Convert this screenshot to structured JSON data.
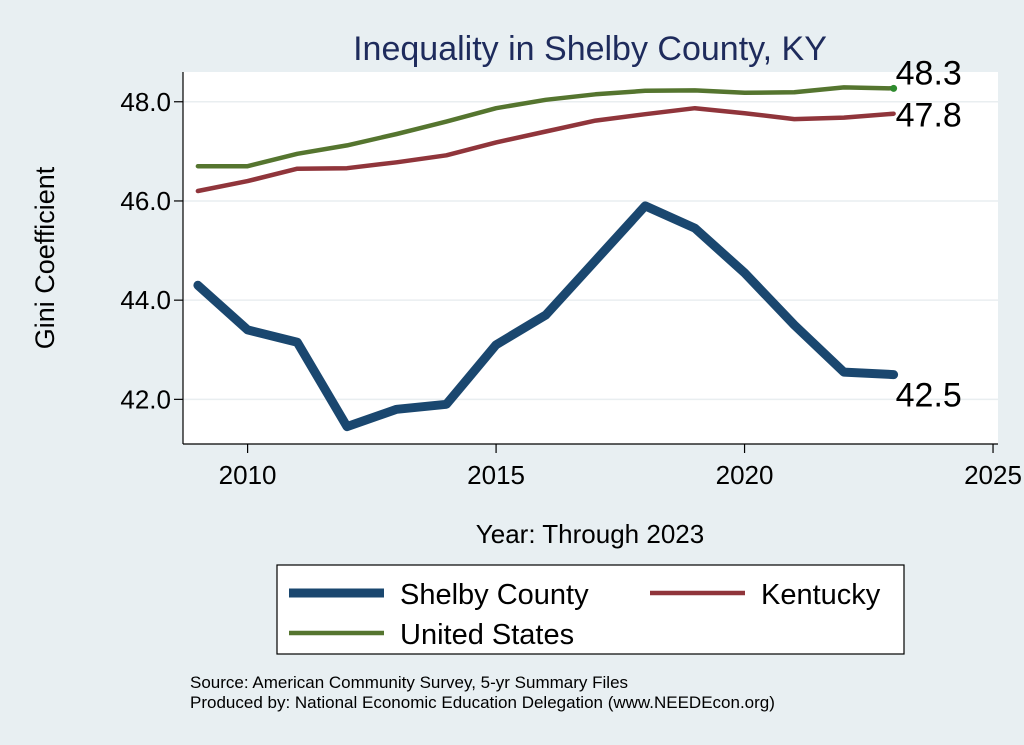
{
  "chart_data": {
    "type": "line",
    "title": "Inequality in Shelby County, KY",
    "xlabel": "Year: Through 2023",
    "ylabel": "Gini Coefficient",
    "xlim": [
      2008.7,
      2025.1
    ],
    "ylim": [
      41.1,
      48.6
    ],
    "x_ticks": [
      2010,
      2015,
      2020,
      2025
    ],
    "x_tick_labels": [
      "2010",
      "2015",
      "2020",
      "2025"
    ],
    "y_ticks": [
      42,
      44,
      46,
      48
    ],
    "y_tick_labels": [
      "42.0",
      "44.0",
      "46.0",
      "48.0"
    ],
    "grid": true,
    "legend_position": "bottom",
    "x": [
      2009,
      2010,
      2011,
      2012,
      2013,
      2014,
      2015,
      2016,
      2017,
      2018,
      2019,
      2020,
      2021,
      2022,
      2023
    ],
    "series": [
      {
        "name": "Shelby County",
        "color": "#1a476f",
        "values": [
          44.3,
          43.4,
          43.15,
          41.45,
          41.8,
          41.9,
          43.1,
          43.7,
          44.8,
          45.9,
          45.45,
          44.55,
          43.5,
          42.55,
          42.5
        ],
        "end_label": "42.5"
      },
      {
        "name": "Kentucky",
        "color": "#90353b",
        "values": [
          46.2,
          46.4,
          46.65,
          46.66,
          46.78,
          46.92,
          47.18,
          47.4,
          47.62,
          47.75,
          47.87,
          47.77,
          47.65,
          47.68,
          47.76
        ],
        "end_label": "47.8"
      },
      {
        "name": "United States",
        "color": "#55752f",
        "values": [
          46.7,
          46.7,
          46.95,
          47.12,
          47.35,
          47.6,
          47.87,
          48.04,
          48.15,
          48.22,
          48.23,
          48.18,
          48.19,
          48.29,
          48.27
        ],
        "end_label": "48.3"
      }
    ],
    "notes": [
      "Source: American Community Survey, 5-yr Summary Files",
      "Produced by: National Economic Education Delegation (www.NEEDEcon.org)"
    ]
  }
}
